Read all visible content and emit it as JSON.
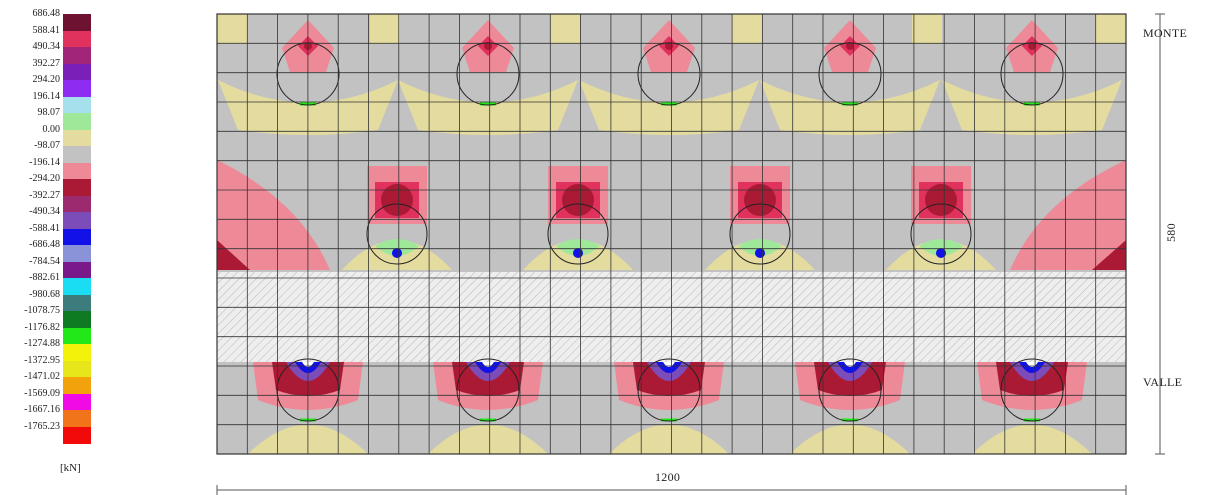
{
  "legend": {
    "unit": "[kN]",
    "entries": [
      {
        "label": "686.48",
        "color": "#6d1230"
      },
      {
        "label": "588.41",
        "color": "#e0325c"
      },
      {
        "label": "490.34",
        "color": "#a1267a"
      },
      {
        "label": "392.27",
        "color": "#7a1fb8"
      },
      {
        "label": "294.20",
        "color": "#8e2cf2"
      },
      {
        "label": "196.14",
        "color": "#a6e0ec"
      },
      {
        "label": "98.07",
        "color": "#9fe89a"
      },
      {
        "label": "0.00",
        "color": "#e4dc9e"
      },
      {
        "label": "-98.07",
        "color": "#c2c2c2"
      },
      {
        "label": "-196.14",
        "color": "#ee8a98"
      },
      {
        "label": "-294.20",
        "color": "#aa1a34"
      },
      {
        "label": "-392.27",
        "color": "#9c2a6e"
      },
      {
        "label": "-490.34",
        "color": "#7c4cb8"
      },
      {
        "label": "-588.41",
        "color": "#1212e8"
      },
      {
        "label": "-686.48",
        "color": "#8a92d8"
      },
      {
        "label": "-784.54",
        "color": "#7a1a8a"
      },
      {
        "label": "-882.61",
        "color": "#1adcf2"
      },
      {
        "label": "-980.68",
        "color": "#3c7c7c"
      },
      {
        "label": "-1078.75",
        "color": "#0e7a22"
      },
      {
        "label": "-1176.82",
        "color": "#22e81a"
      },
      {
        "label": "-1274.88",
        "color": "#f2f20a"
      },
      {
        "label": "-1372.95",
        "color": "#e6e61a"
      },
      {
        "label": "-1471.02",
        "color": "#f2a20a"
      },
      {
        "label": "-1569.09",
        "color": "#f20ae6"
      },
      {
        "label": "-1667.16",
        "color": "#f2741a"
      },
      {
        "label": "-1765.23",
        "color": "#f20a0a"
      }
    ]
  },
  "labels": {
    "top": "MONTE",
    "bottom": "VALLE",
    "height_dim": "580",
    "width_dim": "1200"
  },
  "colors": {
    "background": "#c2c2c2",
    "light": "#e4dc9e",
    "pink": "#ee8a98",
    "red": "#e0325c",
    "darkred": "#aa1a34",
    "purple": "#7c4cb8",
    "blue": "#1212e8",
    "green": "#22e81a",
    "lightgreen": "#9fe89a",
    "grid": "#333333",
    "hatch_fill": "#eeeeee",
    "hatch_line": "#b0b0b0"
  }
}
